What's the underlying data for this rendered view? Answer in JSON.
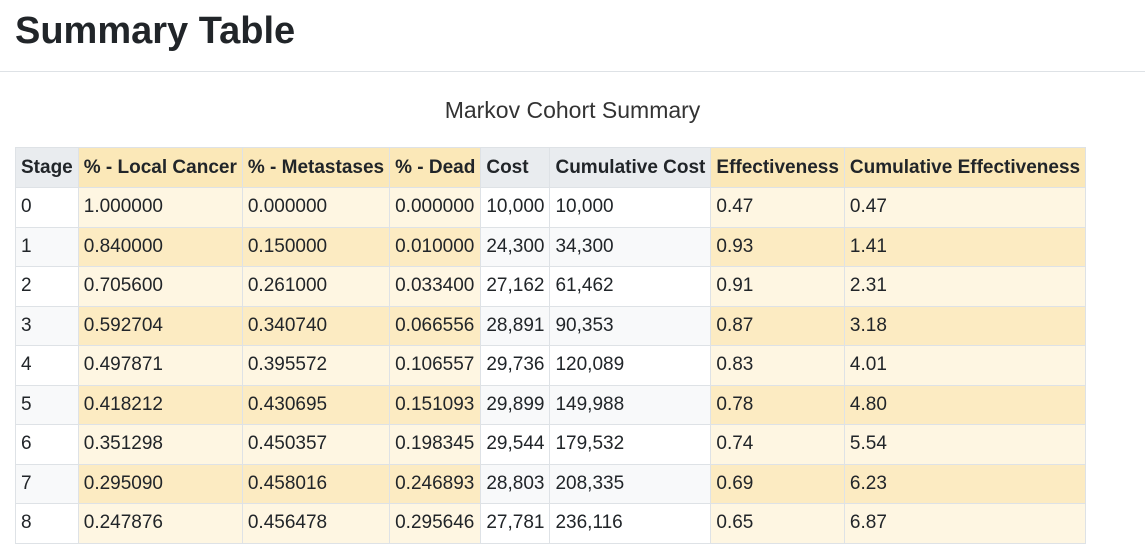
{
  "page": {
    "title": "Summary Table",
    "caption": "Markov Cohort Summary"
  },
  "table": {
    "columns": [
      {
        "label": "Stage",
        "highlight": false
      },
      {
        "label": "% - Local Cancer",
        "highlight": true
      },
      {
        "label": "% - Metastases",
        "highlight": true
      },
      {
        "label": "% - Dead",
        "highlight": true
      },
      {
        "label": "Cost",
        "highlight": false
      },
      {
        "label": "Cumulative Cost",
        "highlight": false
      },
      {
        "label": "Effectiveness",
        "highlight": true
      },
      {
        "label": "Cumulative Effectiveness",
        "highlight": true
      }
    ],
    "rows": [
      [
        "0",
        "1.000000",
        "0.000000",
        "0.000000",
        "10,000",
        "10,000",
        "0.47",
        "0.47"
      ],
      [
        "1",
        "0.840000",
        "0.150000",
        "0.010000",
        "24,300",
        "34,300",
        "0.93",
        "1.41"
      ],
      [
        "2",
        "0.705600",
        "0.261000",
        "0.033400",
        "27,162",
        "61,462",
        "0.91",
        "2.31"
      ],
      [
        "3",
        "0.592704",
        "0.340740",
        "0.066556",
        "28,891",
        "90,353",
        "0.87",
        "3.18"
      ],
      [
        "4",
        "0.497871",
        "0.395572",
        "0.106557",
        "29,736",
        "120,089",
        "0.83",
        "4.01"
      ],
      [
        "5",
        "0.418212",
        "0.430695",
        "0.151093",
        "29,899",
        "149,988",
        "0.78",
        "4.80"
      ],
      [
        "6",
        "0.351298",
        "0.450357",
        "0.198345",
        "29,544",
        "179,532",
        "0.74",
        "5.54"
      ],
      [
        "7",
        "0.295090",
        "0.458016",
        "0.246893",
        "28,803",
        "208,335",
        "0.69",
        "6.23"
      ],
      [
        "8",
        "0.247876",
        "0.456478",
        "0.295646",
        "27,781",
        "236,116",
        "0.65",
        "6.87"
      ]
    ]
  },
  "colors": {
    "header_bg": "#e9ecef",
    "highlight_header_bg": "#fbe8b8",
    "highlight_cell_bg": "#fef6e2",
    "border": "#dee2e6"
  }
}
